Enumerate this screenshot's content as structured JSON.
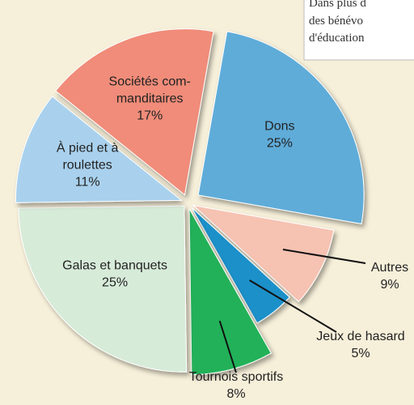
{
  "chart_data": {
    "type": "pie",
    "categories": [
      [
        "Dons"
      ],
      [
        "Autres"
      ],
      [
        "Jeux de hasard"
      ],
      [
        "Tournois sportifs"
      ],
      [
        "Galas et banquets"
      ],
      [
        "À pied et à",
        "roulettes"
      ],
      [
        "Sociétés com-",
        "manditaires"
      ]
    ],
    "values": [
      25,
      9,
      5,
      8,
      25,
      11,
      17
    ],
    "value_labels": [
      "25%",
      "9%",
      "5%",
      "8%",
      "25%",
      "11%",
      "17%"
    ],
    "colors": [
      "#5eacd9",
      "#f6c2b2",
      "#1b90c9",
      "#23b158",
      "#d7ebd9",
      "#a9d1ed",
      "#f08c79"
    ],
    "annotation": [
      "Dans plus d",
      "des bénévo",
      "d'éducation"
    ]
  }
}
